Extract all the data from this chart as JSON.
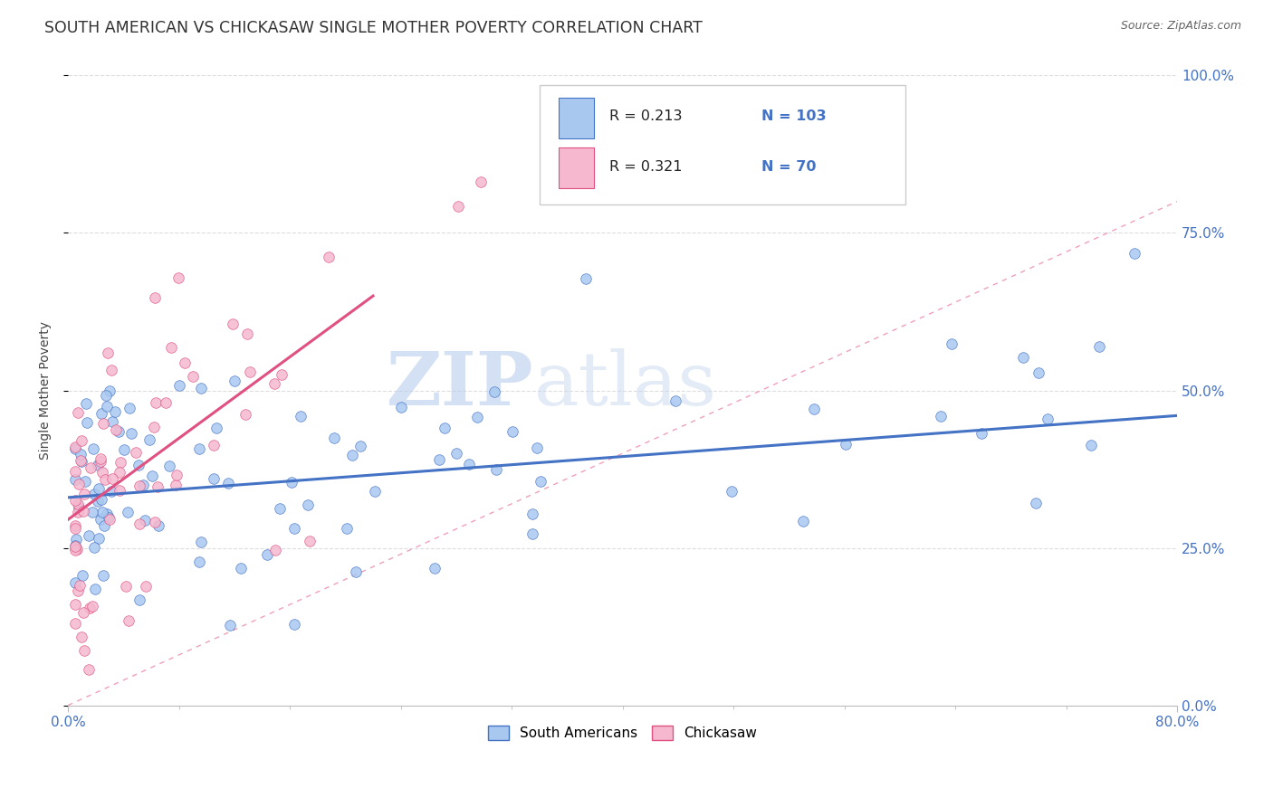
{
  "title": "SOUTH AMERICAN VS CHICKASAW SINGLE MOTHER POVERTY CORRELATION CHART",
  "source": "Source: ZipAtlas.com",
  "ylabel": "Single Mother Poverty",
  "yticks": [
    "0.0%",
    "25.0%",
    "50.0%",
    "75.0%",
    "100.0%"
  ],
  "ytick_vals": [
    0.0,
    0.25,
    0.5,
    0.75,
    1.0
  ],
  "xlim": [
    0.0,
    0.8
  ],
  "ylim": [
    0.0,
    1.0
  ],
  "legend_r1": "R = 0.213",
  "legend_n1": "N = 103",
  "legend_r2": "R = 0.321",
  "legend_n2": "N = 70",
  "color_blue": "#a8c8f0",
  "color_pink": "#f5b8ce",
  "color_blue_line": "#4472C4",
  "color_pink_line": "#e05080",
  "color_text_blue": "#4472C4",
  "watermark_zip": "ZIP",
  "watermark_atlas": "atlas",
  "sa_seed": 7,
  "ck_seed": 13,
  "n_sa": 103,
  "n_ck": 70,
  "sa_line_x": [
    0.0,
    0.8
  ],
  "sa_line_y": [
    0.33,
    0.46
  ],
  "ck_line_x": [
    0.0,
    0.22
  ],
  "ck_line_y": [
    0.295,
    0.65
  ],
  "diag_color": "#f0a0b8",
  "grid_color": "#dddddd",
  "bottom_legend_labels": [
    "South Americans",
    "Chickasaw"
  ]
}
